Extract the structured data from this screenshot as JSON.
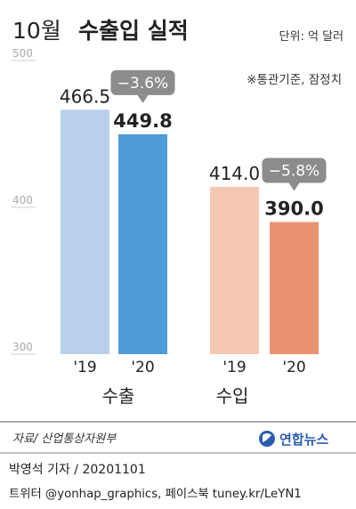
{
  "chart_data": {
    "type": "bar",
    "title_prefix": "10월",
    "title_main": "수출입 실적",
    "unit": "단위: 억 달러",
    "note": "※통관기준, 잠정치",
    "ylim": [
      300,
      500
    ],
    "yticks": [
      "500",
      "400",
      "300"
    ],
    "groups": [
      {
        "name": "수출",
        "bars": [
          {
            "label": "'19",
            "value": 466.5,
            "value_label": "466.5",
            "color": "#b8d0ea"
          },
          {
            "label": "'20",
            "value": 449.8,
            "value_label": "449.8",
            "color": "#4f9bd6"
          }
        ],
        "change": "−3.6%"
      },
      {
        "name": "수입",
        "bars": [
          {
            "label": "'19",
            "value": 414.0,
            "value_label": "414.0",
            "color": "#f6c8b4"
          },
          {
            "label": "'20",
            "value": 390.0,
            "value_label": "390.0",
            "color": "#eb9270"
          }
        ],
        "change": "−5.8%"
      }
    ]
  },
  "footer": {
    "source": "자료/ 산업통상자원부",
    "logo_text": "연합뉴스",
    "reporter": "박영석 기자 /  20201101",
    "social": "트위터 @yonhap_graphics, 페이스북 tuney.kr/LeYN1"
  },
  "colors": {
    "axis_text": "#aaaaaa",
    "badge": "#8c8c8c",
    "logo": "#2a5db0"
  }
}
